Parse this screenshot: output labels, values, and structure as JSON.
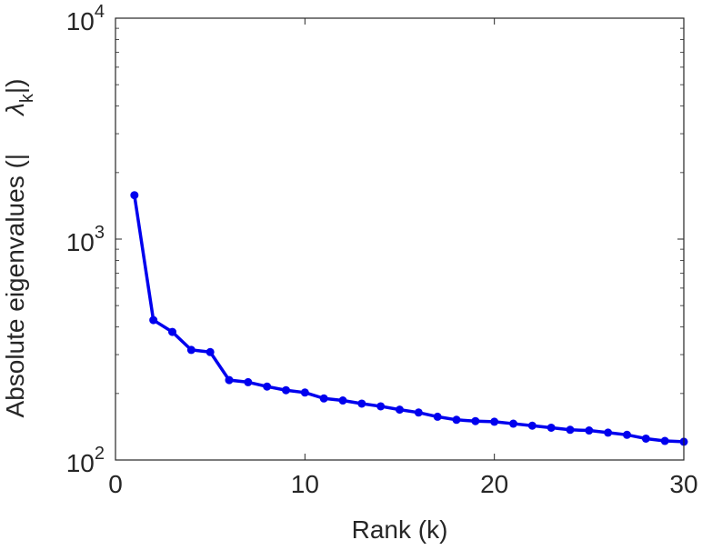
{
  "chart_data": {
    "type": "line",
    "xlabel": "Rank (k)",
    "ylabel": "Absolute eigenvalues (|     λ_k|)",
    "ylabel_main": "Absolute eigenvalues (|",
    "ylabel_lambda": "λ",
    "ylabel_sub": "k",
    "ylabel_close": "|)",
    "xlim": [
      0,
      30
    ],
    "ylim": [
      100,
      10000
    ],
    "yscale": "log",
    "grid": false,
    "x_ticks": [
      0,
      10,
      20,
      30
    ],
    "x_tick_labels": [
      "0",
      "10",
      "20",
      "30"
    ],
    "y_ticks": [
      100,
      1000,
      10000
    ],
    "y_tick_labels": [
      {
        "base": "10",
        "exp": "2"
      },
      {
        "base": "10",
        "exp": "3"
      },
      {
        "base": "10",
        "exp": "4"
      }
    ],
    "series_color": "#0000ee",
    "series": [
      {
        "x": [
          1,
          2,
          3,
          4,
          5,
          6,
          7,
          8,
          9,
          10,
          11,
          12,
          13,
          14,
          15,
          16,
          17,
          18,
          19,
          20,
          21,
          22,
          23,
          24,
          25,
          26,
          27,
          28,
          29,
          30
        ],
        "values": [
          1580,
          430,
          380,
          315,
          308,
          230,
          225,
          215,
          207,
          202,
          190,
          186,
          180,
          175,
          169,
          164,
          157,
          152,
          150,
          149,
          146,
          143,
          140,
          137,
          136,
          133,
          130,
          125,
          122,
          121
        ]
      }
    ]
  }
}
